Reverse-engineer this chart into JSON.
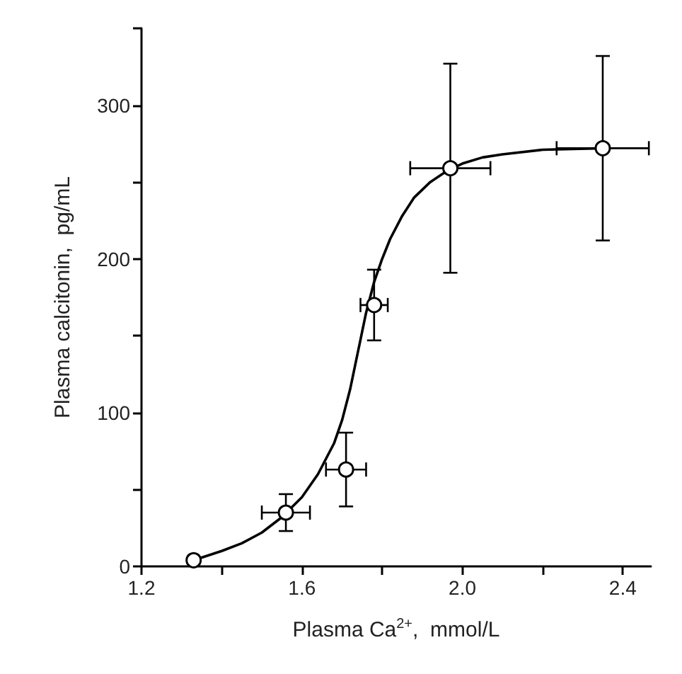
{
  "chart_data": {
    "type": "scatter",
    "xlabel": "Plasma Ca$^{2+}$,  mmol/L",
    "ylabel": "Plasma calcitonin,  pg/mL",
    "xlim": [
      1.2,
      2.47
    ],
    "ylim": [
      0,
      350
    ],
    "xticks": [
      1.2,
      {
        "value": 1.4,
        "label": null
      },
      1.6,
      {
        "value": 1.8,
        "label": null
      },
      {
        "value": 2.0,
        "label": "2.0"
      },
      {
        "value": 2.2,
        "label": null
      },
      2.4
    ],
    "yticks": [
      0,
      {
        "value": 50,
        "label": null
      },
      100,
      {
        "value": 150,
        "label": null
      },
      200,
      {
        "value": 250,
        "label": null
      },
      300,
      {
        "value": 350,
        "label": null
      }
    ],
    "grid": false,
    "marker": "circle",
    "series": [
      {
        "color": "#000000",
        "x": [
          1.33,
          1.56,
          1.71,
          1.78,
          1.97,
          2.35
        ],
        "values": [
          4,
          35,
          63,
          170,
          259,
          272
        ],
        "errors": [
          null,
          12,
          24,
          23,
          68,
          60
        ],
        "xerrors": [
          null,
          0.06,
          0.05,
          0.034,
          0.1,
          0.115
        ]
      },
      {
        "type": "line",
        "color": "#000000",
        "marker": "none",
        "line_style": "solid",
        "x": [
          1.33,
          1.4,
          1.45,
          1.5,
          1.55,
          1.6,
          1.64,
          1.68,
          1.7,
          1.72,
          1.74,
          1.76,
          1.78,
          1.8,
          1.82,
          1.85,
          1.88,
          1.92,
          1.96,
          2.0,
          2.05,
          2.1,
          2.2,
          2.35
        ],
        "values": [
          4,
          10,
          15,
          22,
          32,
          45,
          60,
          80,
          95,
          115,
          140,
          165,
          185,
          200,
          213,
          228,
          240,
          250,
          257,
          262,
          266,
          268,
          271,
          272
        ]
      }
    ]
  }
}
